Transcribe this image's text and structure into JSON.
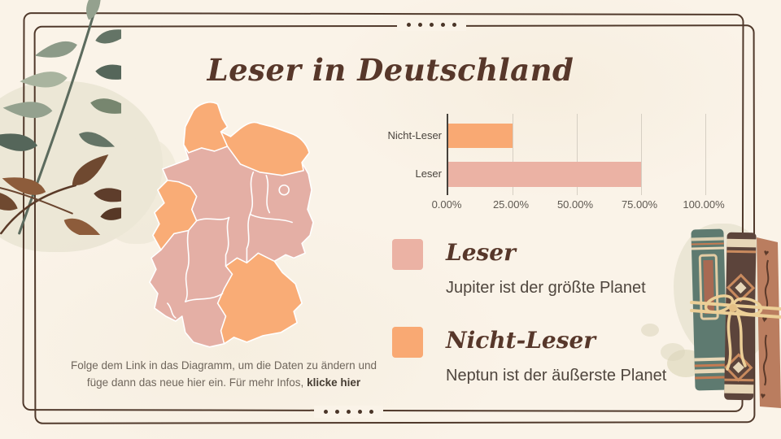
{
  "slide": {
    "title": "Leser in Deutschland",
    "background_color": "#FAF3E8",
    "frame_color": "#50392B",
    "dots_top_count": 5,
    "dots_bottom_count": 5
  },
  "chart_data": {
    "type": "bar",
    "orientation": "horizontal",
    "categories": [
      "Nicht-Leser",
      "Leser"
    ],
    "values": [
      25,
      75
    ],
    "value_unit": "%",
    "series_colors": [
      "#F9A973",
      "#EBB2A4"
    ],
    "x_ticks": [
      "0.00%",
      "25.00%",
      "50.00%",
      "75.00%",
      "100.00%"
    ],
    "xlim": [
      0,
      100
    ],
    "grid": true,
    "title": "Leser in Deutschland",
    "legend_position": "below"
  },
  "legend": {
    "items": [
      {
        "label": "Leser",
        "description": "Jupiter ist der größte Planet",
        "color": "#EBB2A4"
      },
      {
        "label": "Nicht-Leser",
        "description": "Neptun ist der äußerste Planet",
        "color": "#F9A973"
      }
    ]
  },
  "map": {
    "type": "choropleth",
    "region": "Deutschland",
    "colors": {
      "leser": "#E4AFA5",
      "nicht_leser": "#F9AC76"
    }
  },
  "footer": {
    "line1": "Folge dem Link in das Diagramm, um die Daten zu ändern und",
    "line2": "füge dann das neue hier ein. Für mehr Infos, ",
    "link_label": "klicke hier"
  }
}
